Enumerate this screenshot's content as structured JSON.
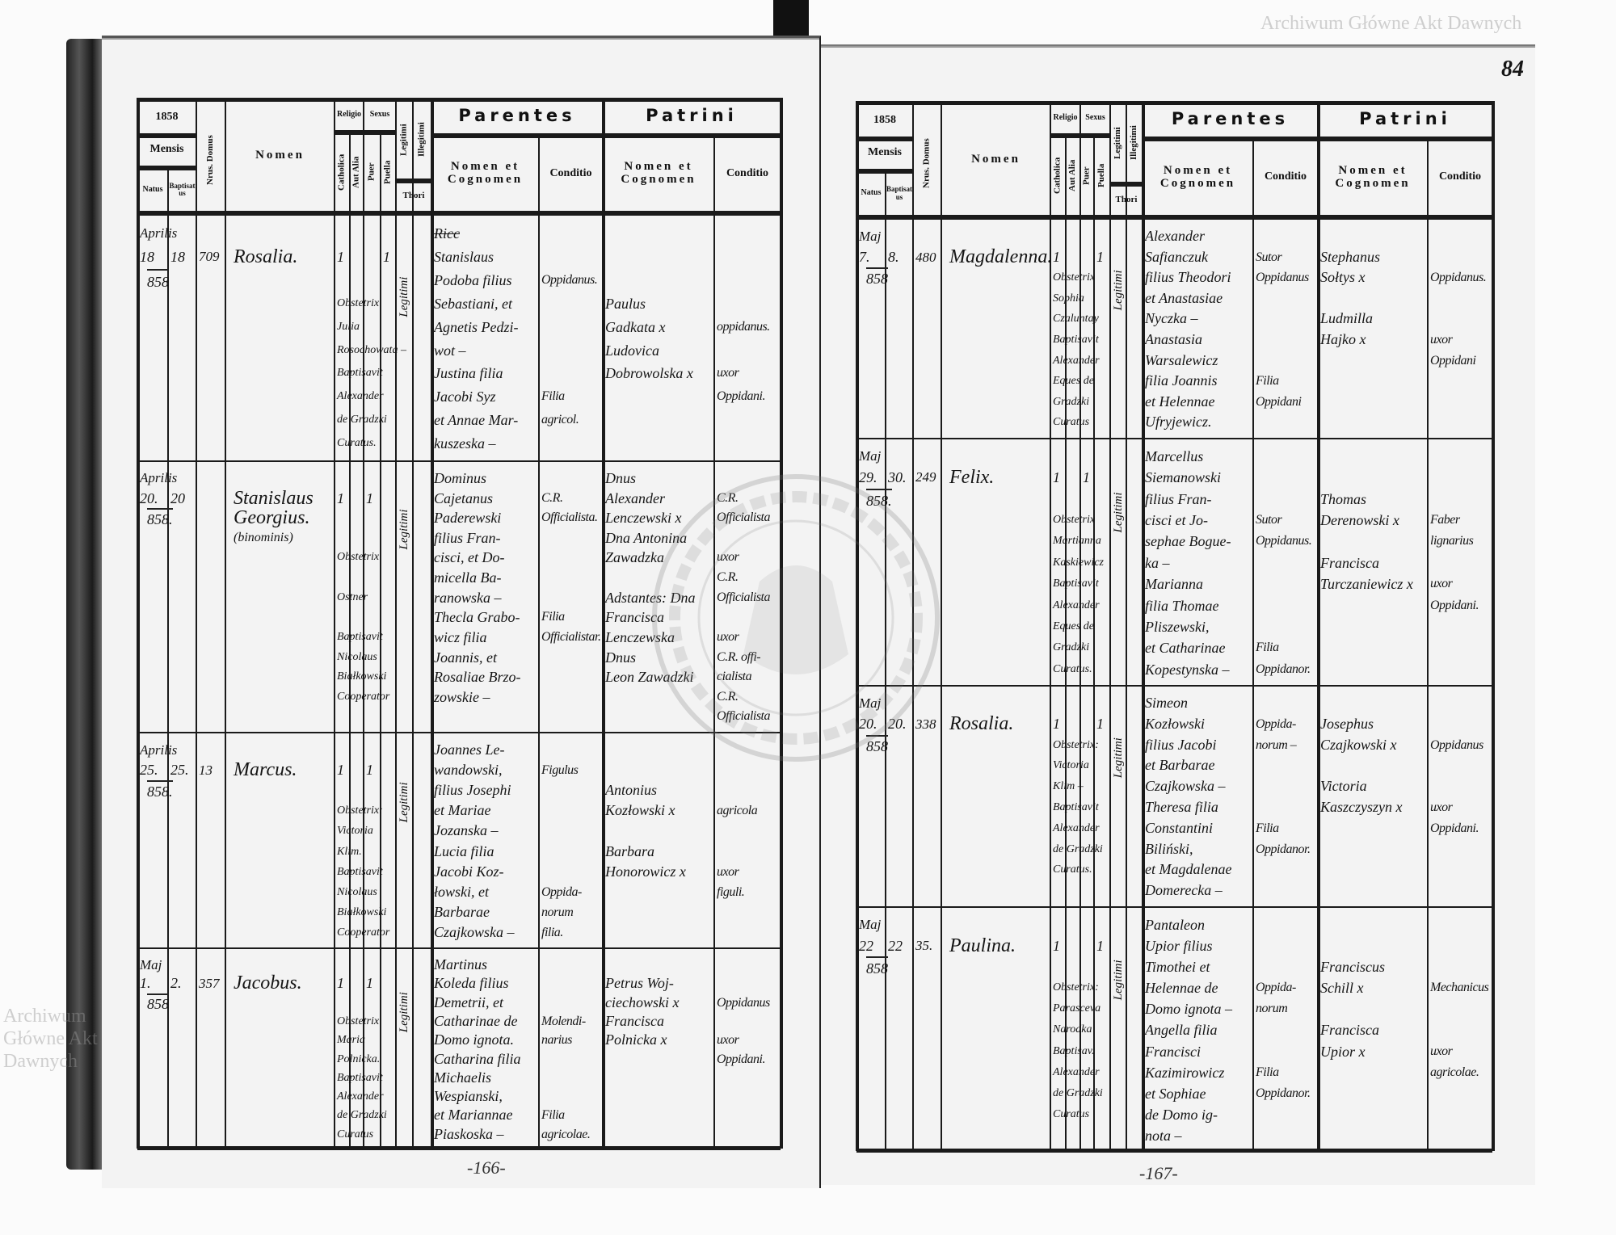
{
  "header": {
    "mensis": "Mensis",
    "natus": "Natus",
    "baptisatus": "Baptisatus",
    "domus": "Nrus. Domus",
    "nomen": "Nomen",
    "religio": "Religio",
    "catholica": "Catholica",
    "aut_alia": "Aut Alia",
    "sexus": "Sexus",
    "puer": "Puer",
    "puella": "Puella",
    "legitimi": "Legitimi",
    "illegitimi": "Illegitimi",
    "thori": "Thori",
    "parentes": "Parentes",
    "patrini": "Patrini",
    "nomen_cognomen": "Nomen et Cognomen",
    "conditio": "Conditio"
  },
  "stamp_text": "ARCHIWUM GŁÓWNE AKT DAWNYCH",
  "watermark": "Archiwum Główne Akt Dawnych",
  "folio_number": "84",
  "pages": [
    {
      "year": "1858",
      "page_number": "-166-",
      "entries": [
        {
          "month": "Aprilis",
          "natus": "18",
          "baptisatus": "18",
          "year": "858",
          "domus": "709",
          "nomen": [
            "Rosalia."
          ],
          "catholica": "1",
          "puer": "",
          "puella": "1",
          "legitimi": "Legitimi",
          "notes": [
            "",
            "",
            "",
            "Obstetrix",
            "Julia",
            "Rosochowata –",
            "Baptisavit",
            "Alexander",
            "de Gradzki",
            "Curatus."
          ],
          "parentes": [
            "Ricc",
            "Stanislaus",
            "Podoba filius",
            "Sebastiani, et",
            "Agnetis Pedzi-",
            "wot –",
            "Justina filia",
            "Jacobi Syz",
            "et Annae Mar-",
            "kuszeska –"
          ],
          "parentes_conditio": [
            "",
            "",
            "Oppidanus.",
            "",
            "",
            "",
            "",
            "Filia",
            "agricol."
          ],
          "patrini": [
            "",
            "",
            "",
            "Paulus",
            "Gadkata x",
            "Ludovica",
            "Dobrowolska x"
          ],
          "patrini_conditio": [
            "",
            "",
            "",
            "",
            "oppidanus.",
            "",
            "uxor",
            "Oppidani."
          ]
        },
        {
          "month": "Aprilis",
          "natus": "20.",
          "baptisatus": "20",
          "year": "858.",
          "domus": "",
          "nomen": [
            "Stanislaus",
            "Georgius.",
            "(binominis)"
          ],
          "catholica": "1",
          "puer": "1",
          "puella": "",
          "legitimi": "Legitimi",
          "notes": [
            "",
            "",
            "",
            "",
            "Obstetrix",
            "",
            "Ostner",
            "",
            "Baptisavit",
            "Nicolaus",
            "Białkowski",
            "Cooperator"
          ],
          "parentes": [
            "Dominus",
            "Cajetanus",
            "Paderewski",
            "filius Fran-",
            "cisci, et Do-",
            "micella Ba-",
            "ranowska –",
            "Thecla Grabo-",
            "wicz filia",
            "Joannis, et",
            "Rosaliae Brzo-",
            "zowskie –"
          ],
          "parentes_conditio": [
            "",
            "C.R.",
            "Officialista.",
            "",
            "",
            "",
            "",
            "Filia",
            "Officialistar."
          ],
          "patrini": [
            "Dnus",
            "Alexander",
            "Lenczewski x",
            "Dna Antonina",
            "Zawadzka",
            "",
            "Adstantes: Dna",
            "Francisca",
            "Lenczewska",
            "Dnus",
            "Leon Zawadzki"
          ],
          "patrini_conditio": [
            "",
            "C.R.",
            "Officialista",
            "",
            "uxor",
            "C.R.",
            "Officialista",
            "",
            "uxor",
            "C.R. offi-",
            "cialista",
            "C.R.",
            "Officialista"
          ]
        },
        {
          "month": "Aprilis",
          "natus": "25.",
          "baptisatus": "25.",
          "year": "858.",
          "domus": "13",
          "nomen": [
            "Marcus."
          ],
          "catholica": "1",
          "puer": "1",
          "puella": "",
          "legitimi": "Legitimi",
          "notes": [
            "",
            "",
            "",
            "Obstetrix:",
            "Victoria",
            "Klim.",
            "Baptisavit",
            "Nicolaus",
            "Białkowski",
            "Cooperator"
          ],
          "parentes": [
            "Joannes Le-",
            "wandowski,",
            "filius Josephi",
            "et Mariae",
            "Jozanska –",
            "Lucia filia",
            "Jacobi Koz-",
            "łowski, et",
            "Barbarae",
            "Czajkowska –"
          ],
          "parentes_conditio": [
            "",
            "Figulus",
            "",
            "",
            "",
            "",
            "",
            "Oppida-",
            "norum",
            "filia."
          ],
          "patrini": [
            "",
            "",
            "Antonius",
            "Kozłowski x",
            "",
            "Barbara",
            "Honorowicz x"
          ],
          "patrini_conditio": [
            "",
            "",
            "",
            "agricola",
            "",
            "",
            "uxor",
            "figuli."
          ]
        },
        {
          "month": "Maj",
          "natus": "1.",
          "baptisatus": "2.",
          "year": "858",
          "domus": "357",
          "nomen": [
            "Jacobus."
          ],
          "catholica": "1",
          "puer": "1",
          "puella": "",
          "legitimi": "Legitimi",
          "notes": [
            "",
            "",
            "",
            "Obstetrix",
            "Maria",
            "Polnicka.",
            "Baptisavit",
            "Alexander",
            "de Gradzki",
            "Curatus"
          ],
          "parentes": [
            "Martinus",
            "Koleda filius",
            "Demetrii, et",
            "Catharinae de",
            "Domo ignota.",
            "Catharina filia",
            "Michaelis",
            "Wespianski,",
            "et Mariannae",
            "Piaskoska –"
          ],
          "parentes_conditio": [
            "",
            "",
            "",
            "Molendi-",
            "narius",
            "",
            "",
            "",
            "Filia",
            "agricolae."
          ],
          "patrini": [
            "",
            "Petrus Woj-",
            "ciechowski x",
            "Francisca",
            "Polnicka x"
          ],
          "patrini_conditio": [
            "",
            "",
            "Oppidanus",
            "",
            "uxor",
            "Oppidani."
          ]
        }
      ]
    },
    {
      "year": "1858",
      "page_number": "-167-",
      "entries": [
        {
          "month": "Maj",
          "natus": "7.",
          "baptisatus": "8.",
          "year": "858",
          "domus": "480",
          "nomen": [
            "Magdalenna."
          ],
          "catholica": "1",
          "puer": "",
          "puella": "1",
          "legitimi": "Legitimi",
          "notes": [
            "",
            "",
            "Obstetrix",
            "Sophia",
            "Czaluntay",
            "Baptisavit",
            "Alexander",
            "Eques de",
            "Gradzki",
            "Curatus"
          ],
          "parentes": [
            "Alexander",
            "Safianczuk",
            "filius Theodori",
            "et Anastasiae",
            "Nyczka –",
            "Anastasia",
            "Warsalewicz",
            "filia Joannis",
            "et Helennae",
            "Ufryjewicz."
          ],
          "parentes_conditio": [
            "",
            "Sutor",
            "Oppidanus",
            "",
            "",
            "",
            "",
            "Filia",
            "Oppidani"
          ],
          "patrini": [
            "",
            "Stephanus",
            "Sołtys x",
            "",
            "Ludmilla",
            "Hajko x"
          ],
          "patrini_conditio": [
            "",
            "",
            "Oppidanus.",
            "",
            "",
            "uxor",
            "Oppidani"
          ]
        },
        {
          "month": "Maj",
          "natus": "29.",
          "baptisatus": "30.",
          "year": "858.",
          "domus": "249",
          "nomen": [
            "Felix."
          ],
          "catholica": "1",
          "puer": "1",
          "puella": "",
          "legitimi": "Legitimi",
          "notes": [
            "",
            "",
            "",
            "Obstetrix",
            "Martianna",
            "Kaskiewicz",
            "Baptisavit",
            "Alexander",
            "Eques de",
            "Gradzki",
            "Curatus."
          ],
          "parentes": [
            "Marcellus",
            "Siemanowski",
            "filius Fran-",
            "cisci et Jo-",
            "sephae Bogue-",
            "ka –",
            "Marianna",
            "filia Thomae",
            "Pliszewski,",
            "et Catharinae",
            "Kopestynska –"
          ],
          "parentes_conditio": [
            "",
            "",
            "",
            "Sutor",
            "Oppidanus.",
            "",
            "",
            "",
            "",
            "Filia",
            "Oppidanor."
          ],
          "patrini": [
            "",
            "",
            "Thomas",
            "Derenowski x",
            "",
            "Francisca",
            "Turczaniewicz x"
          ],
          "patrini_conditio": [
            "",
            "",
            "",
            "Faber",
            "lignarius",
            "",
            "uxor",
            "Oppidani."
          ]
        },
        {
          "month": "Maj",
          "natus": "20.",
          "baptisatus": "20.",
          "year": "858",
          "domus": "338",
          "nomen": [
            "Rosalia."
          ],
          "catholica": "1",
          "puer": "",
          "puella": "1",
          "legitimi": "Legitimi",
          "notes": [
            "",
            "",
            "Obstetrix:",
            "Victoria",
            "Klim –",
            "Baptisavit",
            "Alexander",
            "de Gradzki",
            "Curatus."
          ],
          "parentes": [
            "Simeon",
            "Kozłowski",
            "filius Jacobi",
            "et Barbarae",
            "Czajkowska –",
            "Theresa filia",
            "Constantini",
            "Biliński,",
            "et Magdalenae",
            "Domerecka –"
          ],
          "parentes_conditio": [
            "",
            "Oppida-",
            "norum –",
            "",
            "",
            "",
            "Filia",
            "Oppidanor."
          ],
          "patrini": [
            "",
            "Josephus",
            "Czajkowski x",
            "",
            "Victoria",
            "Kaszczyszyn x"
          ],
          "patrini_conditio": [
            "",
            "",
            "Oppidanus",
            "",
            "",
            "uxor",
            "Oppidani."
          ]
        },
        {
          "month": "Maj",
          "natus": "22",
          "baptisatus": "22",
          "year": "858",
          "domus": "35.",
          "nomen": [
            "Paulina."
          ],
          "catholica": "1",
          "puer": "",
          "puella": "1",
          "legitimi": "Legitimi",
          "notes": [
            "",
            "",
            "",
            "Obstetrix:",
            "Parasceva",
            "Narodka",
            "Baptisav.",
            "Alexander",
            "de Gradzki",
            "Curatus"
          ],
          "parentes": [
            "Pantaleon",
            "Upior filius",
            "Timothei et",
            "Helennae de",
            "Domo ignota –",
            "Angella filia",
            "Francisci",
            "Kazimirowicz",
            "et Sophiae",
            "de Domo ig-",
            "nota –"
          ],
          "parentes_conditio": [
            "",
            "",
            "",
            "Oppida-",
            "norum",
            "",
            "",
            "Filia",
            "Oppidanor."
          ],
          "patrini": [
            "",
            "",
            "Franciscus",
            "Schill x",
            "",
            "Francisca",
            "Upior x"
          ],
          "patrini_conditio": [
            "",
            "",
            "",
            "Mechanicus",
            "",
            "",
            "uxor",
            "agricolae."
          ]
        }
      ]
    }
  ]
}
